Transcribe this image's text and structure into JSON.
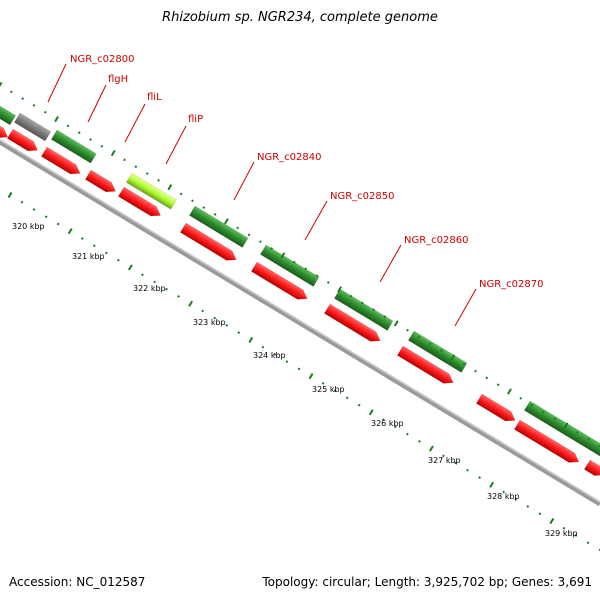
{
  "title": "Rhizobium sp. NGR234, complete genome",
  "footer": {
    "accession": "Accession: NC_012587",
    "summary": "Topology: circular; Length: 3,925,702 bp; Genes: 3,691"
  },
  "colors": {
    "forward_gene": "#2e8b2e",
    "reverse_gene": "#ff1a1a",
    "highlight_gene": "#adff2f",
    "pseudo_gene": "#808080",
    "backbone": "#808080",
    "tick": "#1f7a1f",
    "label": "#cc0000"
  },
  "gene_labels": [
    {
      "name": "NGR_c02800"
    },
    {
      "name": "flgH"
    },
    {
      "name": "fliL"
    },
    {
      "name": "fliP"
    },
    {
      "name": "NGR_c02840"
    },
    {
      "name": "NGR_c02850"
    },
    {
      "name": "NGR_c02860"
    },
    {
      "name": "NGR_c02870"
    }
  ],
  "kbp_ticks": [
    {
      "label": "320 kbp"
    },
    {
      "label": "321 kbp"
    },
    {
      "label": "322 kbp"
    },
    {
      "label": "323 kbp"
    },
    {
      "label": "324 kbp"
    },
    {
      "label": "325 kbp"
    },
    {
      "label": "326 kbp"
    },
    {
      "label": "327 kbp"
    },
    {
      "label": "328 kbp"
    },
    {
      "label": "329 kbp"
    }
  ]
}
